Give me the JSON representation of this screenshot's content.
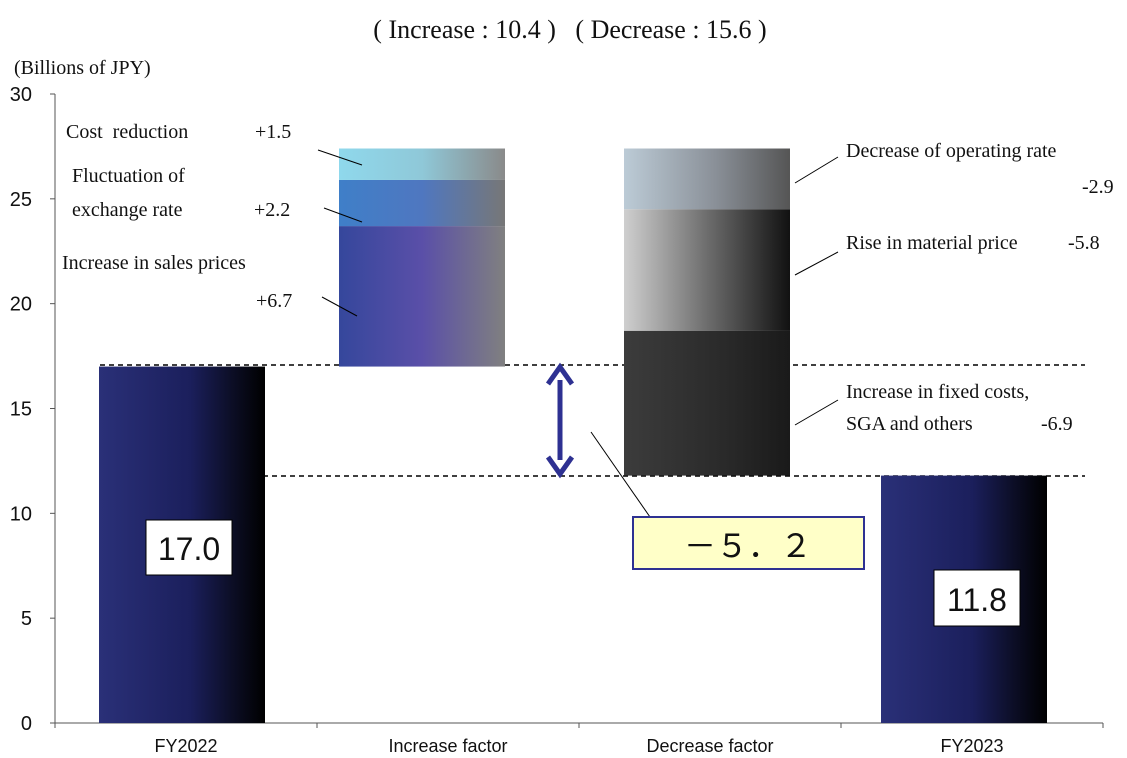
{
  "chart_data": {
    "type": "bar",
    "subtype": "waterfall",
    "header": "( Increase : 10.4 )   ( Decrease : 15.6 )",
    "ylabel": "(Billions of JPY)",
    "ylim": [
      0,
      30
    ],
    "yticks": [
      "0",
      "5",
      "10",
      "15",
      "20",
      "25",
      "30"
    ],
    "categories": [
      "FY2022",
      "Increase factor",
      "Decrease factor",
      "FY2023"
    ],
    "totals": [
      {
        "category": "FY2022",
        "value": 17.0,
        "label": "17.0"
      },
      {
        "category": "FY2023",
        "value": 11.8,
        "label": "11.8"
      }
    ],
    "increase_segments": [
      {
        "name": "Increase in sales prices",
        "value": 6.7,
        "label": "+6.7",
        "color": "#3b4ca6"
      },
      {
        "name": "Fluctuation of exchange rate",
        "value": 2.2,
        "label": "+2.2",
        "color": "#4a8ad0"
      },
      {
        "name": "Cost reduction",
        "value": 1.5,
        "label": "+1.5",
        "color": "#8fd8ec"
      }
    ],
    "decrease_segments": [
      {
        "name": "Decrease of operating rate",
        "value": -2.9,
        "label": "-2.9",
        "color": "#b7c7d3"
      },
      {
        "name": "Rise in material price",
        "value": -5.8,
        "label": "-5.8",
        "color": "#c7c7c7"
      },
      {
        "name": "Increase in fixed costs, SGA and others",
        "value": -6.9,
        "label": "-6.9",
        "color": "#3a3a3a"
      }
    ],
    "net_change": {
      "value": -5.2,
      "label": "－５．２"
    },
    "colors": {
      "total_bar": "#232a6e",
      "arrow": "#2e3192",
      "callout_fill": "#ffffc8",
      "callout_border": "#2e3192"
    },
    "grid": false,
    "legend": "none"
  },
  "labels": {
    "cost_reduction": "Cost  reduction",
    "cost_reduction_val": "+1.5",
    "fx_line1": "Fluctuation of",
    "fx_line2": "exchange rate",
    "fx_val": "+2.2",
    "sales_line1": "Increase in sales prices",
    "sales_val": "+6.7",
    "op_rate": "Decrease of operating rate",
    "op_rate_val": "-2.9",
    "material": "Rise in material price",
    "material_val": "-5.8",
    "fixed_line1": "Increase in fixed costs,",
    "fixed_line2": "SGA and others",
    "fixed_val": "-6.9"
  }
}
